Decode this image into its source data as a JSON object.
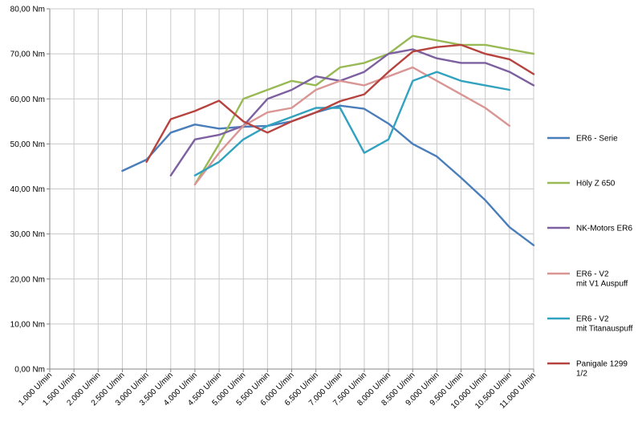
{
  "chart_data": {
    "type": "line",
    "title": "",
    "xlabel": "",
    "ylabel": "",
    "ylim": [
      0,
      80
    ],
    "y_tick_labels": [
      "0,00 Nm",
      "10,00 Nm",
      "20,00 Nm",
      "30,00 Nm",
      "40,00 Nm",
      "50,00 Nm",
      "60,00 Nm",
      "70,00 Nm",
      "80,00 Nm"
    ],
    "categories": [
      "1.000 U/min",
      "1.500 U/min",
      "2.000 U/min",
      "2.500 U/min",
      "3.000 U/min",
      "3.500 U/min",
      "4.000 U/min",
      "4.500 U/min",
      "5.000 U/min",
      "5.500 U/min",
      "6.000 U/min",
      "6.500 U/min",
      "7.000 U/min",
      "7.500 U/min",
      "8.000 U/min",
      "8.500 U/min",
      "9.000 U/min",
      "9.500 U/min",
      "10.000 U/min",
      "10.500 U/min",
      "11.000 U/min"
    ],
    "grid": true,
    "legend_position": "right",
    "series": [
      {
        "name": "ER6 - Serie",
        "color": "#4a7ebb",
        "values": [
          null,
          null,
          null,
          44,
          46.5,
          52.5,
          54.3,
          53.4,
          53.8,
          54,
          55,
          57,
          58.5,
          57.8,
          54.5,
          50,
          47.2,
          42.5,
          37.5,
          31.5,
          27.5
        ]
      },
      {
        "name": "Höly Z 650",
        "color": "#98b954",
        "values": [
          null,
          null,
          null,
          null,
          null,
          null,
          41,
          50,
          60,
          62,
          64,
          63,
          67,
          68,
          70,
          74,
          73,
          72,
          72,
          71,
          70
        ]
      },
      {
        "name": "NK-Motors ER6",
        "color": "#7d60a0",
        "values": [
          null,
          null,
          null,
          null,
          null,
          43,
          51,
          52,
          54,
          60,
          62,
          65,
          64,
          66,
          70,
          71,
          69,
          68,
          68,
          66,
          63
        ]
      },
      {
        "name": "ER6 - V2\nmit V1 Auspuff",
        "color": "#d99694",
        "values": [
          null,
          null,
          null,
          null,
          null,
          null,
          41,
          48,
          54,
          57,
          58,
          62,
          64,
          63,
          65,
          67,
          64,
          61,
          58,
          54,
          null
        ]
      },
      {
        "name": "ER6 - V2\nmit Titanauspuff",
        "color": "#31a2bf",
        "values": [
          null,
          null,
          null,
          null,
          null,
          null,
          43,
          46,
          51,
          54,
          56,
          58,
          58,
          48,
          51,
          64,
          66,
          64,
          63,
          62,
          null
        ]
      },
      {
        "name": "Panigale 1299\n1/2",
        "color": "#b7433f",
        "values": [
          null,
          null,
          null,
          null,
          46,
          55.5,
          57.3,
          59.6,
          55,
          52.5,
          55,
          57,
          59.5,
          61,
          66,
          70.5,
          71.5,
          72,
          70,
          68.8,
          65.5
        ]
      }
    ]
  }
}
